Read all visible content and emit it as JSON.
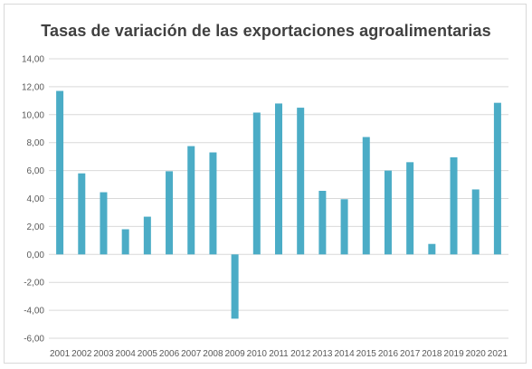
{
  "chart_data": {
    "type": "bar",
    "title": "Tasas de variación de las exportaciones agroalimentarias",
    "xlabel": "",
    "ylabel": "",
    "categories": [
      "2001",
      "2002",
      "2003",
      "2004",
      "2005",
      "2006",
      "2007",
      "2008",
      "2009",
      "2010",
      "2011",
      "2012",
      "2013",
      "2014",
      "2015",
      "2016",
      "2017",
      "2018",
      "2019",
      "2020",
      "2021"
    ],
    "series": [
      {
        "values": [
          11.7,
          5.8,
          4.45,
          1.8,
          2.7,
          5.95,
          7.75,
          7.3,
          -4.6,
          10.15,
          10.8,
          10.5,
          4.55,
          3.95,
          8.4,
          6.0,
          6.6,
          0.75,
          6.95,
          4.65,
          10.85
        ]
      }
    ],
    "ylim": [
      -6,
      14
    ],
    "yticks": [
      14,
      12,
      10,
      8,
      6,
      4,
      2,
      0,
      -2,
      -4,
      -6
    ],
    "ytick_labels": [
      "14,00",
      "12,00",
      "10,00",
      "8,00",
      "6,00",
      "4,00",
      "2,00",
      "0,00",
      "-2,00",
      "-4,00",
      "-6,00"
    ],
    "grid": true,
    "legend": "none",
    "bar_color": "#4bacc6",
    "grid_color": "#d9d9d9"
  }
}
